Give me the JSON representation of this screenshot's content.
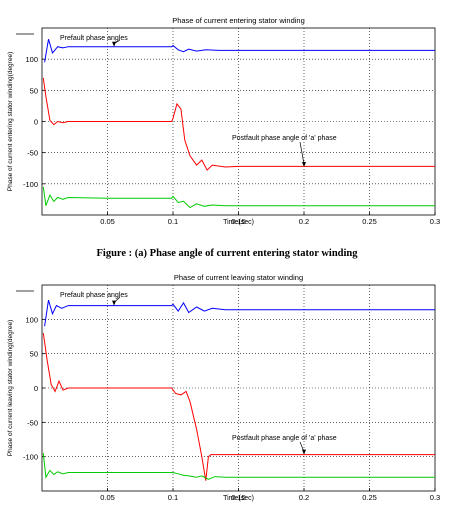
{
  "figure": {
    "caption_a": "Figure : (a) Phase angle of current entering stator    winding"
  },
  "chart_data": [
    {
      "type": "line",
      "title": "Phase of current entering stator winding",
      "xlabel": "Time(sec)",
      "ylabel": "Phase of current entering stator winding(degree)",
      "xlim": [
        0,
        0.3
      ],
      "ylim": [
        -150,
        150
      ],
      "xticks": [
        0.05,
        0.1,
        0.15,
        0.2,
        0.25,
        0.3
      ],
      "yticks": [
        100,
        50,
        0,
        -50,
        -100
      ],
      "grid": true,
      "annotations": [
        {
          "text": "Prefault phase angles",
          "arrow_to": [
            0.055,
            120
          ]
        },
        {
          "text": "Postfault phase angle of 'a' phase",
          "arrow_to": [
            0.2,
            -73
          ]
        }
      ],
      "series": [
        {
          "color": "#0000ff",
          "x": [
            0.002,
            0.005,
            0.008,
            0.012,
            0.016,
            0.02,
            0.05,
            0.099,
            0.1,
            0.104,
            0.108,
            0.112,
            0.118,
            0.125,
            0.135,
            0.15,
            0.3
          ],
          "y": [
            95,
            132,
            110,
            120,
            118,
            120,
            120,
            120,
            122,
            115,
            112,
            116,
            113,
            115,
            114,
            114,
            114
          ]
        },
        {
          "color": "#ff0000",
          "x": [
            0.001,
            0.003,
            0.006,
            0.009,
            0.012,
            0.016,
            0.02,
            0.05,
            0.099,
            0.1,
            0.103,
            0.106,
            0.109,
            0.113,
            0.118,
            0.122,
            0.126,
            0.13,
            0.14,
            0.15,
            0.3
          ],
          "y": [
            70,
            40,
            2,
            -5,
            0,
            -2,
            0,
            0,
            0,
            5,
            28,
            20,
            -30,
            -55,
            -70,
            -62,
            -78,
            -70,
            -73,
            -72,
            -72
          ]
        },
        {
          "color": "#00cc00",
          "x": [
            0.001,
            0.003,
            0.006,
            0.009,
            0.012,
            0.016,
            0.02,
            0.05,
            0.099,
            0.1,
            0.104,
            0.108,
            0.113,
            0.118,
            0.124,
            0.13,
            0.14,
            0.3
          ],
          "y": [
            -105,
            -135,
            -118,
            -128,
            -122,
            -125,
            -122,
            -123,
            -123,
            -120,
            -130,
            -128,
            -138,
            -132,
            -136,
            -134,
            -135,
            -135
          ]
        }
      ]
    },
    {
      "type": "line",
      "title": "Phase of current leaving stator winding",
      "xlabel": "Time(sec)",
      "ylabel": "Phase of current leaving stator winding(degree)",
      "xlim": [
        0,
        0.3
      ],
      "ylim": [
        -150,
        150
      ],
      "xticks": [
        0.05,
        0.1,
        0.15,
        0.2,
        0.25,
        0.3
      ],
      "yticks": [
        100,
        50,
        0,
        -50,
        -100
      ],
      "grid": true,
      "annotations": [
        {
          "text": "Prefault phase angles",
          "arrow_to": [
            0.055,
            120
          ]
        },
        {
          "text": "Postfault phase angle of 'a' phase",
          "arrow_to": [
            0.2,
            -97
          ]
        }
      ],
      "series": [
        {
          "color": "#0000ff",
          "x": [
            0.002,
            0.005,
            0.008,
            0.011,
            0.015,
            0.02,
            0.05,
            0.099,
            0.1,
            0.104,
            0.108,
            0.112,
            0.118,
            0.124,
            0.13,
            0.14,
            0.3
          ],
          "y": [
            90,
            128,
            108,
            120,
            116,
            120,
            120,
            120,
            122,
            112,
            124,
            110,
            118,
            112,
            116,
            114,
            114
          ]
        },
        {
          "color": "#ff0000",
          "x": [
            0.001,
            0.004,
            0.007,
            0.01,
            0.013,
            0.016,
            0.02,
            0.05,
            0.099,
            0.102,
            0.106,
            0.11,
            0.113,
            0.118,
            0.122,
            0.125,
            0.127,
            0.129,
            0.3
          ],
          "y": [
            80,
            40,
            5,
            -5,
            10,
            -3,
            0,
            0,
            0,
            -8,
            -10,
            -5,
            -20,
            -60,
            -100,
            -135,
            -100,
            -97,
            -97
          ]
        },
        {
          "color": "#00cc00",
          "x": [
            0.001,
            0.003,
            0.006,
            0.009,
            0.012,
            0.016,
            0.02,
            0.05,
            0.1,
            0.104,
            0.108,
            0.112,
            0.118,
            0.122,
            0.127,
            0.132,
            0.14,
            0.3
          ],
          "y": [
            -95,
            -130,
            -120,
            -126,
            -122,
            -125,
            -123,
            -123,
            -123,
            -125,
            -127,
            -128,
            -130,
            -128,
            -133,
            -129,
            -130,
            -130
          ]
        }
      ]
    }
  ]
}
